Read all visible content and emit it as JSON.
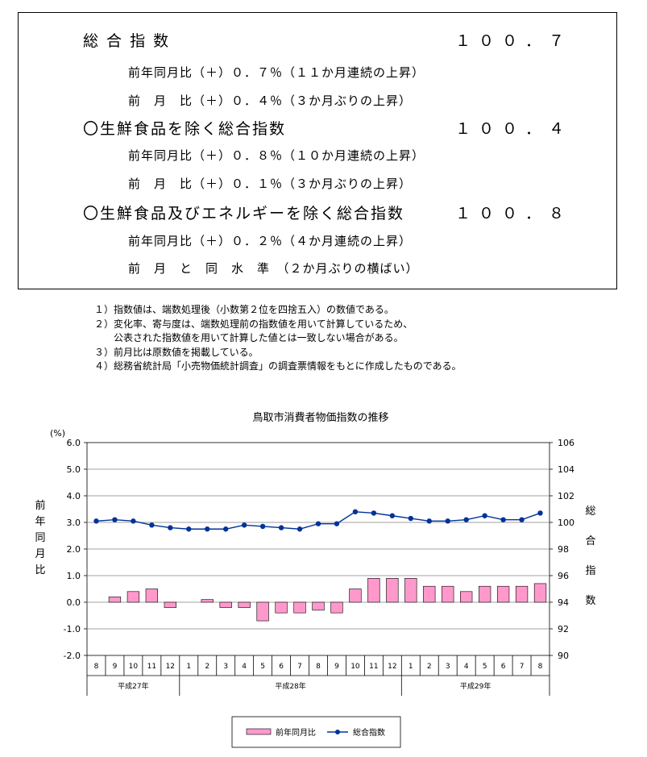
{
  "summary": {
    "rows": [
      {
        "label": "総 合 指 数",
        "value": "１００．７"
      },
      {
        "sub": "前年同月比（＋）０．７％（１１か月連続の上昇）"
      },
      {
        "sub": "前　月　比（＋）０．４％（３か月ぶりの上昇）"
      },
      {
        "label": "〇生鮮食品を除く総合指数",
        "value": "１００．４"
      },
      {
        "sub": "前年同月比（＋）０．８％（１０か月連続の上昇）"
      },
      {
        "sub": "前　月　比（＋）０．１％（３か月ぶりの上昇）"
      },
      {
        "label": "〇生鮮食品及びエネルギーを除く総合指数",
        "value": "１００．８"
      },
      {
        "sub": "前年同月比（＋）０．２％（４か月連続の上昇）"
      },
      {
        "sub": "前　月　と　同　水　準　（２か月ぶりの横ばい）"
      }
    ]
  },
  "notes": [
    "１）指数値は、端数処理後（小数第２位を四捨五入）の数値である。",
    "２）変化率、寄与度は、端数処理前の指数値を用いて計算しているため、",
    "　　公表された指数値を用いて計算した値とは一致しない場合がある。",
    "３）前月比は原数値を掲載している。",
    "４）総務省統計局「小売物価統計調査」の調査票情報をもとに作成したものである。"
  ],
  "chart_data": {
    "type": "bar",
    "title": "鳥取市消費者物価指数の推移",
    "unit_left": "(%)",
    "ylabel_left": "前年同月比",
    "ylabel_right": "総合指数",
    "categories": [
      "8",
      "9",
      "10",
      "11",
      "12",
      "1",
      "2",
      "3",
      "4",
      "5",
      "6",
      "7",
      "8",
      "9",
      "10",
      "11",
      "12",
      "1",
      "2",
      "3",
      "4",
      "5",
      "6",
      "7",
      "8"
    ],
    "year_groups": [
      {
        "label": "平成27年",
        "count": 5
      },
      {
        "label": "平成28年",
        "count": 12
      },
      {
        "label": "平成29年",
        "count": 8
      }
    ],
    "ylim_left": [
      -2.0,
      6.0
    ],
    "yticks_left": [
      "-2.0",
      "-1.0",
      "0.0",
      "1.0",
      "2.0",
      "3.0",
      "4.0",
      "5.0",
      "6.0"
    ],
    "ylim_right": [
      90,
      106
    ],
    "yticks_right": [
      "90",
      "92",
      "94",
      "96",
      "98",
      "100",
      "102",
      "104",
      "106"
    ],
    "series": [
      {
        "name": "前年同月比",
        "type": "bar",
        "axis": "left",
        "color": "#FF99CC",
        "values": [
          0.0,
          0.2,
          0.4,
          0.5,
          -0.2,
          0.0,
          0.1,
          -0.2,
          -0.2,
          -0.7,
          -0.4,
          -0.4,
          -0.3,
          -0.4,
          0.5,
          0.9,
          0.9,
          0.9,
          0.6,
          0.6,
          0.4,
          0.6,
          0.6,
          0.6,
          0.7
        ]
      },
      {
        "name": "総合指数",
        "type": "line",
        "axis": "right",
        "color": "#003399",
        "values": [
          100.1,
          100.2,
          100.1,
          99.8,
          99.6,
          99.5,
          99.5,
          99.5,
          99.8,
          99.7,
          99.6,
          99.5,
          99.9,
          99.9,
          100.8,
          100.7,
          100.5,
          100.3,
          100.1,
          100.1,
          100.2,
          100.5,
          100.2,
          100.2,
          100.7
        ]
      }
    ],
    "legend_position": "bottom"
  }
}
